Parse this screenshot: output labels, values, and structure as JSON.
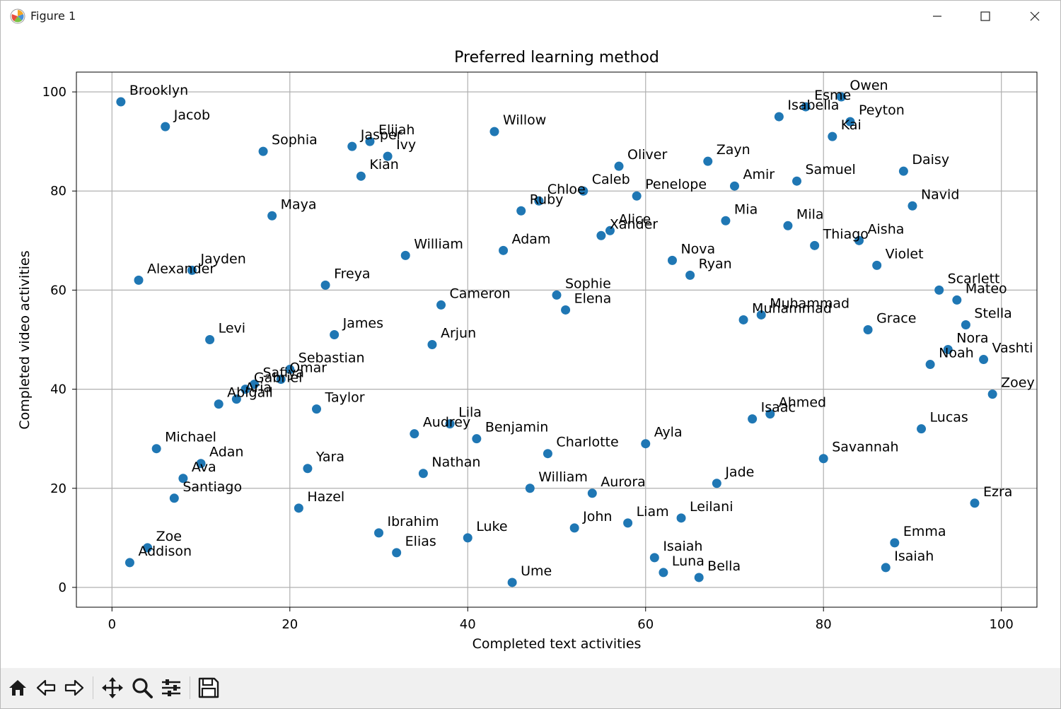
{
  "window": {
    "title": "Figure 1",
    "icon": "matplotlib-logo-icon",
    "controls": [
      "minimize-icon",
      "maximize-icon",
      "close-icon"
    ]
  },
  "toolbar": {
    "buttons": [
      "home-icon",
      "back-icon",
      "forward-icon",
      "pan-icon",
      "zoom-icon",
      "configure-subplots-icon",
      "save-icon"
    ]
  },
  "colors": {
    "marker": "#1f77b4",
    "grid": "#b0b0b0",
    "text": "#000000",
    "toolbar_bg": "#f0f0f0"
  },
  "chart_data": {
    "type": "scatter",
    "title": "Preferred learning method",
    "xlabel": "Completed text activities",
    "ylabel": "Completed video activities",
    "xlim": [
      -4,
      104
    ],
    "ylim": [
      -4,
      104
    ],
    "xticks": [
      0,
      20,
      40,
      60,
      80,
      100
    ],
    "yticks": [
      0,
      20,
      40,
      60,
      80,
      100
    ],
    "grid": true,
    "points": [
      {
        "label": "Brooklyn",
        "x": 1,
        "y": 98
      },
      {
        "label": "Jacob",
        "x": 6,
        "y": 93
      },
      {
        "label": "Sophia",
        "x": 17,
        "y": 88
      },
      {
        "label": "Jasper",
        "x": 27,
        "y": 89
      },
      {
        "label": "Elijah",
        "x": 29,
        "y": 90
      },
      {
        "label": "Ivy",
        "x": 31,
        "y": 87
      },
      {
        "label": "Kian",
        "x": 28,
        "y": 83
      },
      {
        "label": "Willow",
        "x": 43,
        "y": 92
      },
      {
        "label": "Oliver",
        "x": 57,
        "y": 85
      },
      {
        "label": "Zayn",
        "x": 67,
        "y": 86
      },
      {
        "label": "Isabella",
        "x": 75,
        "y": 95
      },
      {
        "label": "Esme",
        "x": 78,
        "y": 97
      },
      {
        "label": "Owen",
        "x": 82,
        "y": 99
      },
      {
        "label": "Peyton",
        "x": 83,
        "y": 94
      },
      {
        "label": "Kai",
        "x": 81,
        "y": 91
      },
      {
        "label": "Daisy",
        "x": 89,
        "y": 84
      },
      {
        "label": "Samuel",
        "x": 77,
        "y": 82
      },
      {
        "label": "Amir",
        "x": 70,
        "y": 81
      },
      {
        "label": "Penelope",
        "x": 59,
        "y": 79
      },
      {
        "label": "Caleb",
        "x": 53,
        "y": 80
      },
      {
        "label": "Chloe",
        "x": 48,
        "y": 78
      },
      {
        "label": "Ruby",
        "x": 46,
        "y": 76
      },
      {
        "label": "Navid",
        "x": 90,
        "y": 77
      },
      {
        "label": "Maya",
        "x": 18,
        "y": 75
      },
      {
        "label": "Mia",
        "x": 69,
        "y": 74
      },
      {
        "label": "Mila",
        "x": 76,
        "y": 73
      },
      {
        "label": "Alice",
        "x": 56,
        "y": 72
      },
      {
        "label": "Xander",
        "x": 55,
        "y": 71
      },
      {
        "label": "Aisha",
        "x": 84,
        "y": 70
      },
      {
        "label": "Thiago",
        "x": 79,
        "y": 69
      },
      {
        "label": "Adam",
        "x": 44,
        "y": 68
      },
      {
        "label": "William",
        "x": 33,
        "y": 67
      },
      {
        "label": "Nova",
        "x": 63,
        "y": 66
      },
      {
        "label": "Violet",
        "x": 86,
        "y": 65
      },
      {
        "label": "Jayden",
        "x": 9,
        "y": 64
      },
      {
        "label": "Ryan",
        "x": 65,
        "y": 63
      },
      {
        "label": "Alexander",
        "x": 3,
        "y": 62
      },
      {
        "label": "Freya",
        "x": 24,
        "y": 61
      },
      {
        "label": "Scarlett",
        "x": 93,
        "y": 60
      },
      {
        "label": "Sophie",
        "x": 50,
        "y": 59
      },
      {
        "label": "Mateo",
        "x": 95,
        "y": 58
      },
      {
        "label": "Cameron",
        "x": 37,
        "y": 57
      },
      {
        "label": "Elena",
        "x": 51,
        "y": 56
      },
      {
        "label": "Muhammad",
        "x": 73,
        "y": 55
      },
      {
        "label": "Muhammad",
        "x": 71,
        "y": 54
      },
      {
        "label": "Stella",
        "x": 96,
        "y": 53
      },
      {
        "label": "Grace",
        "x": 85,
        "y": 52
      },
      {
        "label": "James",
        "x": 25,
        "y": 51
      },
      {
        "label": "Levi",
        "x": 11,
        "y": 50
      },
      {
        "label": "Arjun",
        "x": 36,
        "y": 49
      },
      {
        "label": "Nora",
        "x": 94,
        "y": 48
      },
      {
        "label": "Vashti",
        "x": 98,
        "y": 46
      },
      {
        "label": "Noah",
        "x": 92,
        "y": 45
      },
      {
        "label": "Sebastian",
        "x": 20,
        "y": 44
      },
      {
        "label": "Omar",
        "x": 19,
        "y": 42
      },
      {
        "label": "Safiya",
        "x": 16,
        "y": 41
      },
      {
        "label": "Gabriel",
        "x": 15,
        "y": 40
      },
      {
        "label": "Zoey",
        "x": 99,
        "y": 39
      },
      {
        "label": "Aria",
        "x": 14,
        "y": 38
      },
      {
        "label": "Abigail",
        "x": 12,
        "y": 37
      },
      {
        "label": "Taylor",
        "x": 23,
        "y": 36
      },
      {
        "label": "Ahmed",
        "x": 74,
        "y": 35
      },
      {
        "label": "Isaac",
        "x": 72,
        "y": 34
      },
      {
        "label": "Lila",
        "x": 38,
        "y": 33
      },
      {
        "label": "Lucas",
        "x": 91,
        "y": 32
      },
      {
        "label": "Audrey",
        "x": 34,
        "y": 31
      },
      {
        "label": "Benjamin",
        "x": 41,
        "y": 30
      },
      {
        "label": "Ayla",
        "x": 60,
        "y": 29
      },
      {
        "label": "Michael",
        "x": 5,
        "y": 28
      },
      {
        "label": "Charlotte",
        "x": 49,
        "y": 27
      },
      {
        "label": "Savannah",
        "x": 80,
        "y": 26
      },
      {
        "label": "Adan",
        "x": 10,
        "y": 25
      },
      {
        "label": "Yara",
        "x": 22,
        "y": 24
      },
      {
        "label": "Nathan",
        "x": 35,
        "y": 23
      },
      {
        "label": "Ava",
        "x": 8,
        "y": 22
      },
      {
        "label": "Jade",
        "x": 68,
        "y": 21
      },
      {
        "label": "William",
        "x": 47,
        "y": 20
      },
      {
        "label": "Aurora",
        "x": 54,
        "y": 19
      },
      {
        "label": "Santiago",
        "x": 7,
        "y": 18
      },
      {
        "label": "Ezra",
        "x": 97,
        "y": 17
      },
      {
        "label": "Hazel",
        "x": 21,
        "y": 16
      },
      {
        "label": "Leilani",
        "x": 64,
        "y": 14
      },
      {
        "label": "Liam",
        "x": 58,
        "y": 13
      },
      {
        "label": "John",
        "x": 52,
        "y": 12
      },
      {
        "label": "Ibrahim",
        "x": 30,
        "y": 11
      },
      {
        "label": "Luke",
        "x": 40,
        "y": 10
      },
      {
        "label": "Emma",
        "x": 88,
        "y": 9
      },
      {
        "label": "Zoe",
        "x": 4,
        "y": 8
      },
      {
        "label": "Elias",
        "x": 32,
        "y": 7
      },
      {
        "label": "Isaiah",
        "x": 61,
        "y": 6
      },
      {
        "label": "Addison",
        "x": 2,
        "y": 5
      },
      {
        "label": "Isaiah",
        "x": 87,
        "y": 4
      },
      {
        "label": "Luna",
        "x": 62,
        "y": 3
      },
      {
        "label": "Bella",
        "x": 66,
        "y": 2
      },
      {
        "label": "Ume",
        "x": 45,
        "y": 1
      }
    ]
  }
}
